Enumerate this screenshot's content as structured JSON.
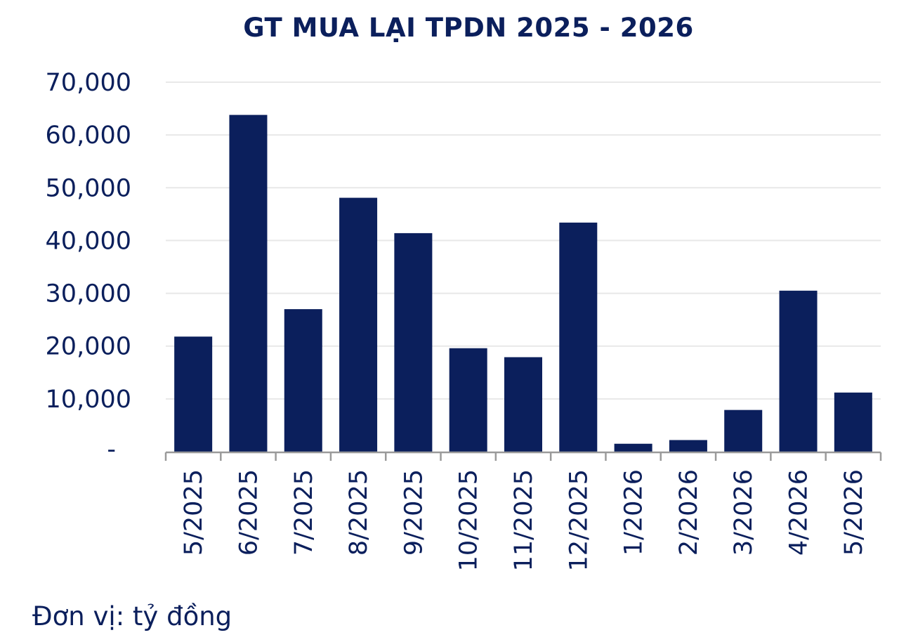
{
  "chart_data": {
    "type": "bar",
    "title": "GT MUA LẠI TPDN 2025 - 2026",
    "categories": [
      "5/2025",
      "6/2025",
      "7/2025",
      "8/2025",
      "9/2025",
      "10/2025",
      "11/2025",
      "12/2025",
      "1/2026",
      "2/2026",
      "3/2026",
      "4/2026",
      "5/2026"
    ],
    "series": [
      {
        "values": [
          21800,
          63800,
          27000,
          48100,
          41400,
          19600,
          17900,
          43400,
          1500,
          2200,
          7900,
          30500,
          11200
        ]
      }
    ],
    "ylim": [
      0,
      70000
    ],
    "yticks": [
      0,
      10000,
      20000,
      30000,
      40000,
      50000,
      60000,
      70000
    ],
    "ytick_labels": [
      "-",
      "10,000",
      "20,000",
      "30,000",
      "40,000",
      "50,000",
      "60,000",
      "70,000"
    ],
    "xlabel": "",
    "ylabel": "",
    "grid": true,
    "legend": "none",
    "bar_color": "#0b1f5c",
    "text_color": "#0b1f5c",
    "grid_color": "#e8e8e8",
    "axis_color": "#9a9a9a"
  },
  "note": "Đơn vị: tỷ đồng"
}
